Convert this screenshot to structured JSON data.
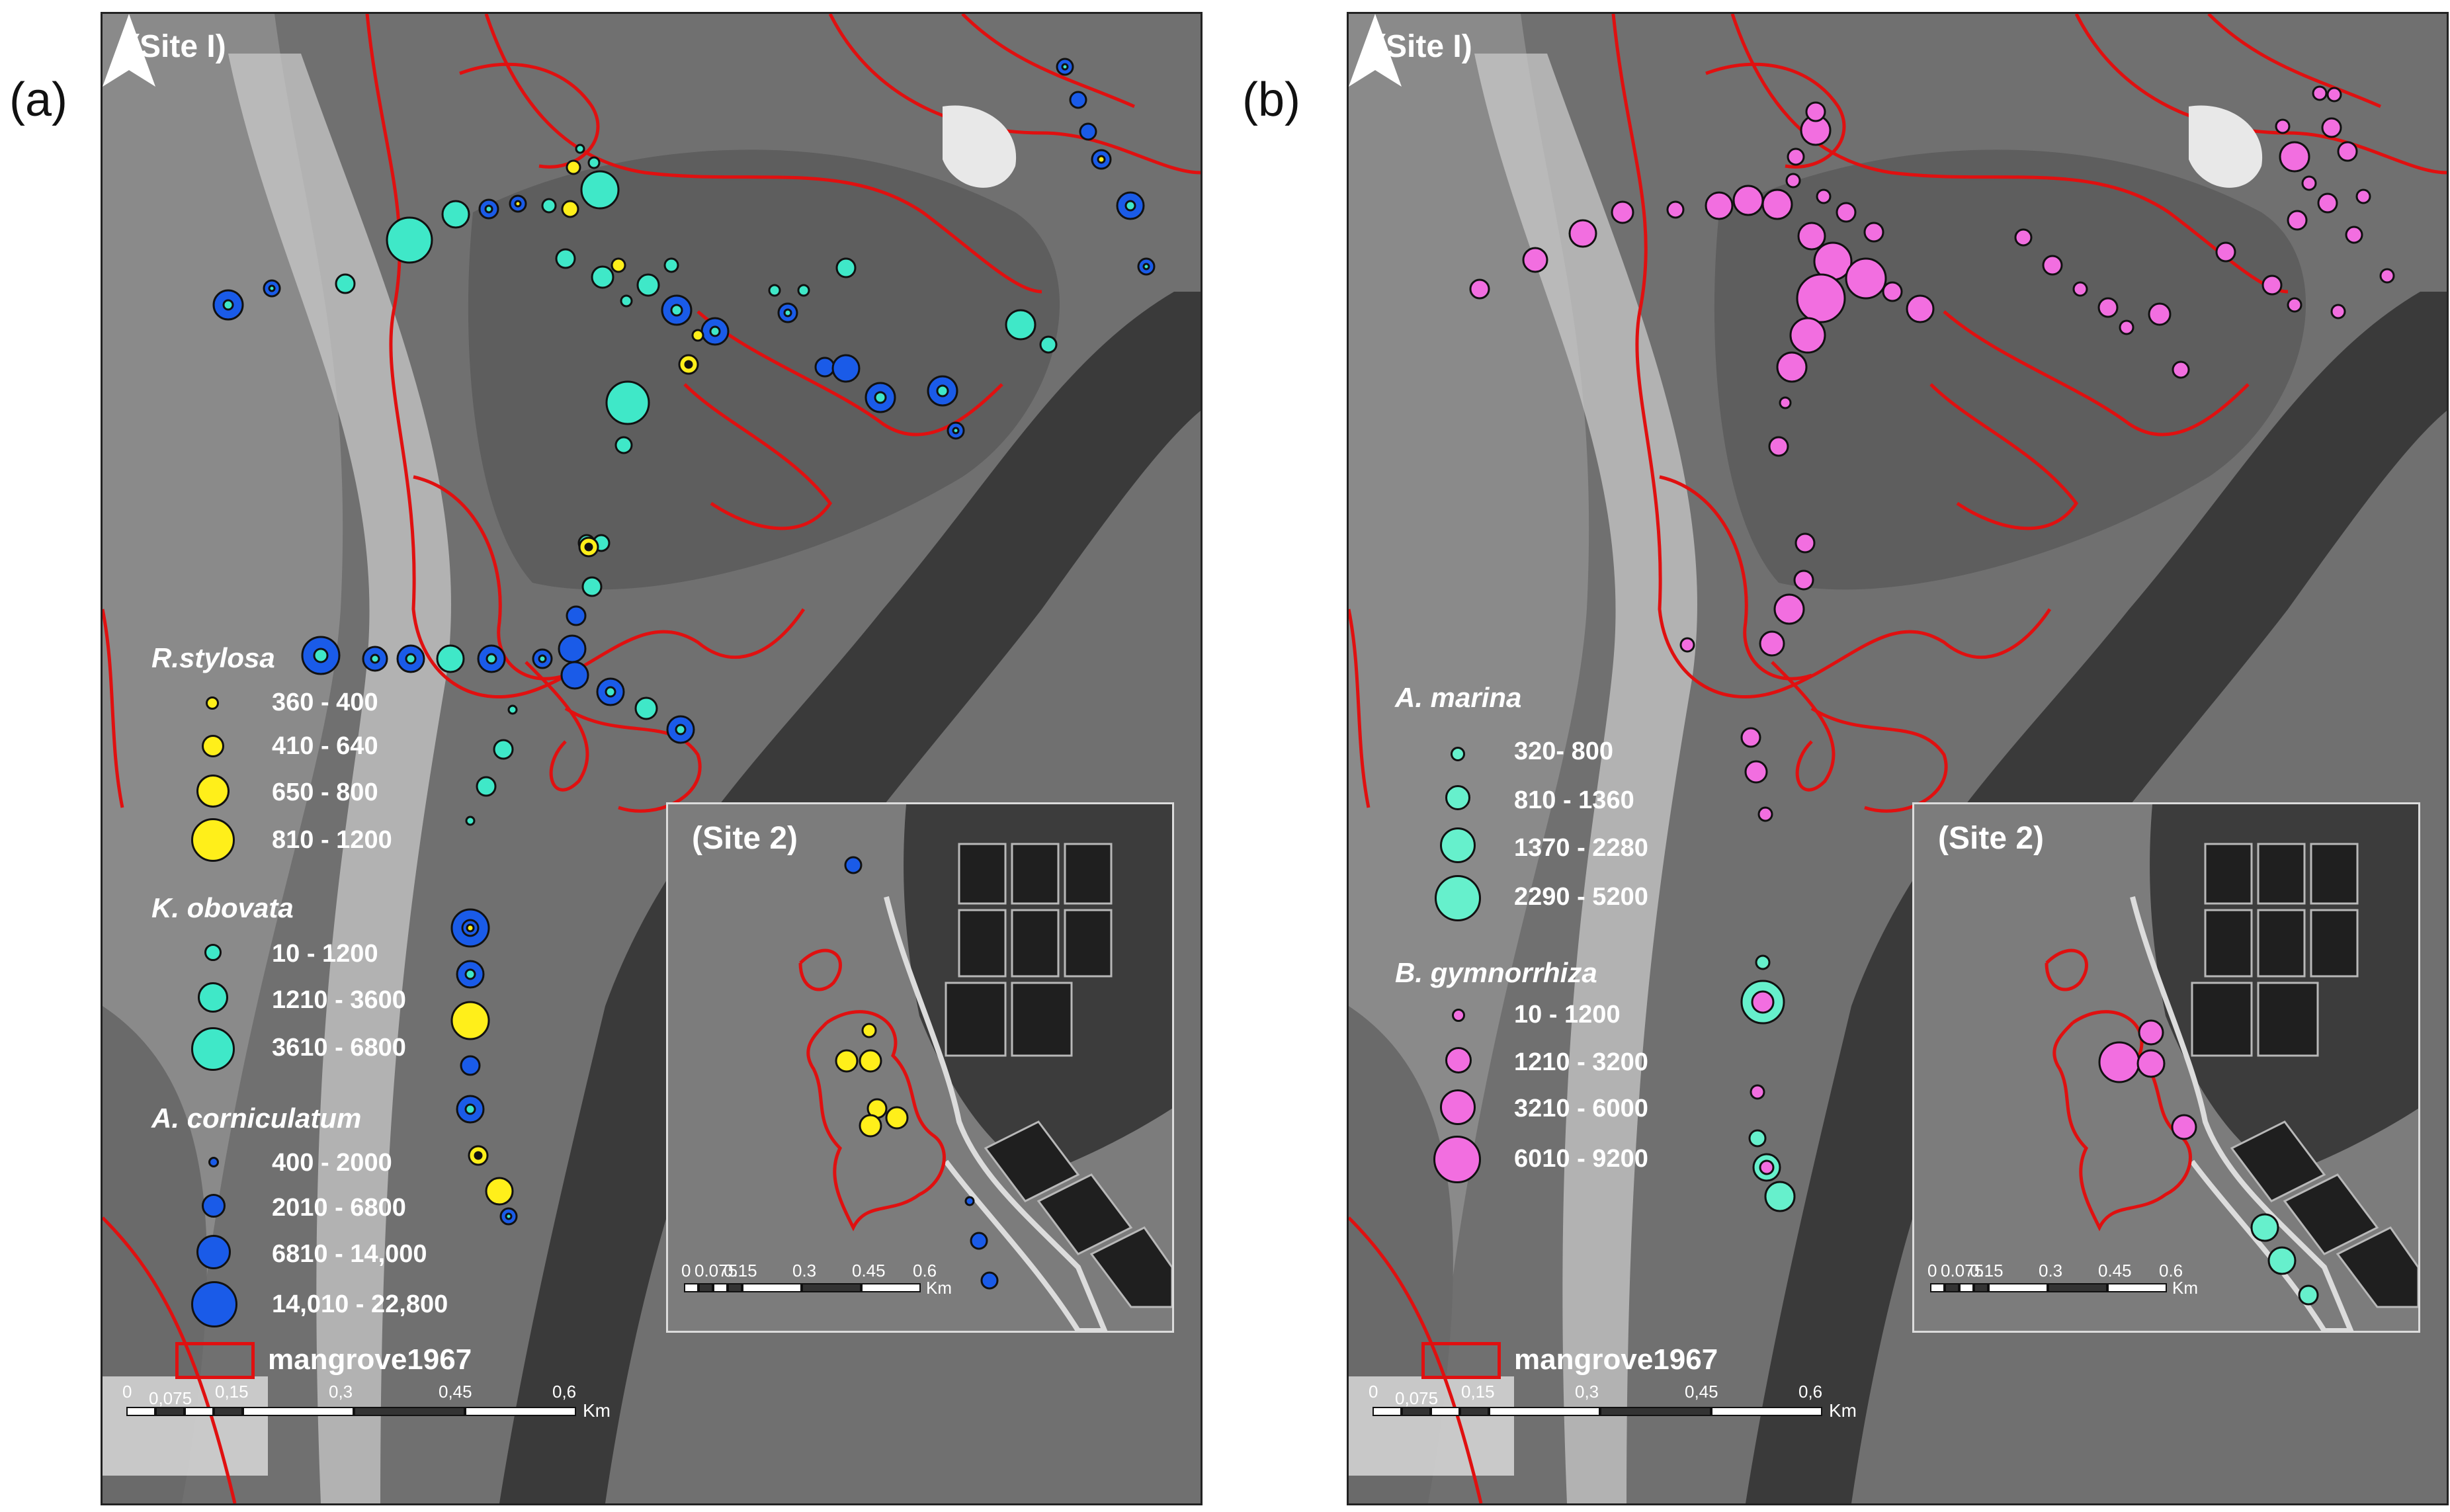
{
  "panels": [
    {
      "letter": "(a)",
      "site1_label": "(Site I)",
      "site2_label": "(Site 2)",
      "legend": {
        "groups": [
          {
            "title": "R.stylosa",
            "color": "#ffef1a",
            "classes": [
              "360 - 400",
              "410 - 640",
              "650 - 800",
              "810 - 1200"
            ]
          },
          {
            "title": "K. obovata",
            "color": "#3fe8c8",
            "classes": [
              "10 - 1200",
              "1210 - 3600",
              "3610 - 6800"
            ]
          },
          {
            "title": "A. corniculatum",
            "color": "#1a5be8",
            "classes": [
              "400 - 2000",
              "2010 - 6800",
              "6810 - 14,000",
              "14,010 - 22,800"
            ]
          }
        ],
        "mangrove_label": "mangrove1967"
      },
      "scale_main": {
        "ticks": [
          "0",
          "0,075",
          "0,15",
          "0,3",
          "0,45",
          "0,6"
        ],
        "unit": "Km"
      },
      "scale_inset": {
        "ticks": [
          "0",
          "0.075",
          "0.15",
          "0.3",
          "0.45",
          "0.6"
        ],
        "unit": "Km"
      }
    },
    {
      "letter": "(b)",
      "site1_label": "(Site I)",
      "site2_label": "(Site 2)",
      "legend": {
        "groups": [
          {
            "title": "A. marina",
            "color": "#66f0cc",
            "classes": [
              "320- 800",
              "810 - 1360",
              "1370 - 2280",
              "2290 - 5200"
            ]
          },
          {
            "title": "B. gymnorrhiza",
            "color": "#f26ee0",
            "classes": [
              "10 - 1200",
              "1210 - 3200",
              "3210 - 6000",
              "6010 - 9200"
            ]
          }
        ],
        "mangrove_label": "mangrove1967"
      },
      "scale_main": {
        "ticks": [
          "0",
          "0,075",
          "0,15",
          "0,3",
          "0,45",
          "0,6"
        ],
        "unit": "Km"
      },
      "scale_inset": {
        "ticks": [
          "0",
          "0.075",
          "0.15",
          "0.3",
          "0.45",
          "0.6"
        ],
        "unit": "Km"
      }
    }
  ],
  "colors": {
    "mangrove_outline": "#e01010",
    "r_stylosa": "#ffef1a",
    "k_obovata": "#3fe8c8",
    "a_corniculatum": "#1a5be8",
    "a_marina": "#66f0cc",
    "b_gymnorrhiza": "#f26ee0"
  }
}
